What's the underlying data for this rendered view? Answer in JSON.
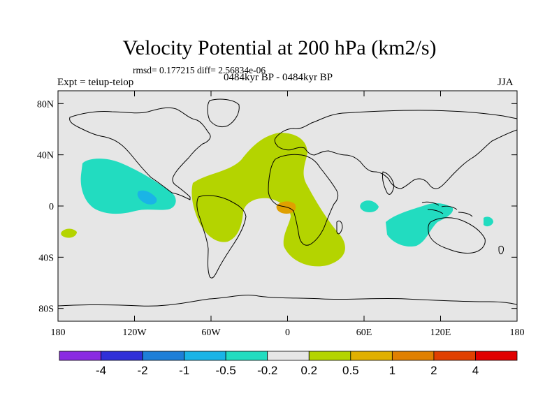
{
  "title": "Velocity Potential at 200 hPa (km2/s)",
  "stats": "rmsd= 0.177215 diff= 2.56834e-06",
  "experiment": "Expt = teiup-teiop",
  "period": "0484kyr BP - 0484kyr BP",
  "season": "JJA",
  "axes": {
    "lat_ticks": [
      "80N",
      "40N",
      "0",
      "40S",
      "80S"
    ],
    "lon_ticks": [
      "180",
      "120W",
      "60W",
      "0",
      "60E",
      "120E",
      "180"
    ]
  },
  "colorbar": {
    "colors": [
      "#8a2be2",
      "#3030d8",
      "#1e7fd8",
      "#1ab4e6",
      "#22dcc0",
      "#e6e6e6",
      "#b4d400",
      "#e0b000",
      "#e08000",
      "#e04000",
      "#e00000"
    ],
    "labels": [
      "-4",
      "-2",
      "-1",
      "-0.5",
      "-0.2",
      "0.2",
      "0.5",
      "1",
      "2",
      "4"
    ]
  },
  "colors": {
    "background": "#e6e6e6",
    "negative_fill": "#22dcc0",
    "negative_core": "#1ab4e6",
    "positive_fill": "#b4d400",
    "positive_core": "#e0a000"
  }
}
